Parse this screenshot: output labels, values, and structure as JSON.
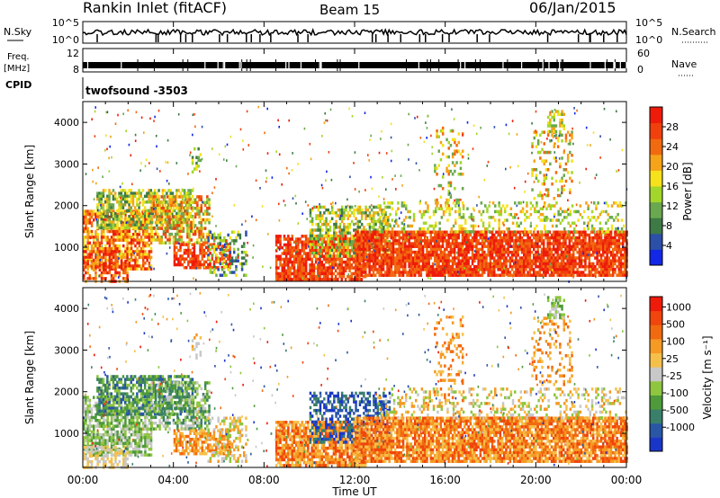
{
  "header": {
    "station": "Rankin Inlet (fitACF)",
    "beam": "Beam 15",
    "date": "06/Jan/2015"
  },
  "top_panels": {
    "nsky_label": "N.Sky",
    "nsearch_label": "N.Search",
    "nsky_ticks": [
      "10^5",
      "10^0"
    ],
    "nsearch_ticks": [
      "10^5",
      "10^0"
    ],
    "freq_label": "Freq.",
    "freq_unit": "[MHz]",
    "freq_ticks": [
      "12",
      "8"
    ],
    "nave_label": "Nave",
    "nave_ticks": [
      "60",
      "0"
    ],
    "cpid_label": "CPID",
    "cpid_value": "twofsound -3503"
  },
  "chart_data": [
    {
      "type": "heatmap",
      "name": "power",
      "ylabel": "Slant Range [km]",
      "xlabel": "Time UT",
      "x_range_hours": [
        0,
        24
      ],
      "y_range_km": [
        180,
        4500
      ],
      "yticks": [
        "1000",
        "2000",
        "3000",
        "4000"
      ],
      "colorbar": {
        "label": "Power [dB]",
        "colors": [
          "#1228e6",
          "#2c4fa8",
          "#3d7a45",
          "#6aa84f",
          "#a3d62a",
          "#f5e11c",
          "#f5a318",
          "#f26a10",
          "#f0400d",
          "#ee1b0a"
        ],
        "labels": [
          "4",
          "8",
          "12",
          "16",
          "20",
          "24",
          "28"
        ]
      }
    },
    {
      "type": "heatmap",
      "name": "velocity",
      "ylabel": "Slant Range [km]",
      "xlabel": "Time UT",
      "x_range_hours": [
        0,
        24
      ],
      "y_range_km": [
        180,
        4500
      ],
      "yticks": [
        "1000",
        "2000",
        "3000",
        "4000"
      ],
      "colorbar": {
        "label": "Velocity [m s⁻¹]",
        "colors": [
          "#1a36c8",
          "#2a56a6",
          "#3a7f6a",
          "#4f9a3a",
          "#8ec63f",
          "#c8c8c8",
          "#f5c04a",
          "#f59a25",
          "#f26a10",
          "#f0450d",
          "#ee1b0a"
        ],
        "labels": [
          "1000",
          "500",
          "100",
          "25",
          "-25",
          "-100",
          "-500",
          "-1000"
        ]
      }
    }
  ],
  "xaxis": {
    "ticks": [
      "00:00",
      "04:00",
      "08:00",
      "12:00",
      "16:00",
      "20:00",
      "00:00"
    ],
    "label": "Time UT"
  },
  "colors": {
    "axis": "#000000",
    "background": "#ffffff"
  }
}
